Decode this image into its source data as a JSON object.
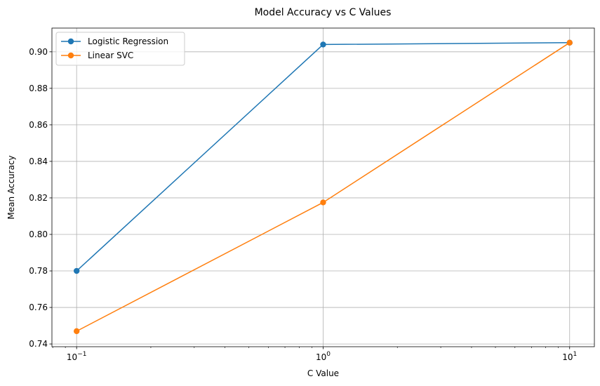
{
  "chart_data": {
    "type": "line",
    "title": "Model Accuracy vs C Values",
    "xlabel": "C Value",
    "ylabel": "Mean Accuracy",
    "xscale": "log",
    "x": [
      0.1,
      1,
      10
    ],
    "xticks": [
      0.1,
      1,
      10
    ],
    "xtick_labels": [
      {
        "base": "10",
        "exp": "−1"
      },
      {
        "base": "10",
        "exp": "0"
      },
      {
        "base": "10",
        "exp": "1"
      }
    ],
    "xlim": [
      0.0794,
      12.6
    ],
    "ylim": [
      0.7385,
      0.913
    ],
    "yticks": [
      0.74,
      0.76,
      0.78,
      0.8,
      0.82,
      0.84,
      0.86,
      0.88,
      0.9
    ],
    "ytick_labels": [
      "0.74",
      "0.76",
      "0.78",
      "0.80",
      "0.82",
      "0.84",
      "0.86",
      "0.88",
      "0.90"
    ],
    "grid": true,
    "legend_position": "top-left",
    "series": [
      {
        "name": "Logistic Regression",
        "color": "#1f77b4",
        "values": [
          0.78,
          0.904,
          0.905
        ]
      },
      {
        "name": "Linear SVC",
        "color": "#ff7f0e",
        "values": [
          0.747,
          0.8175,
          0.905
        ]
      }
    ]
  }
}
